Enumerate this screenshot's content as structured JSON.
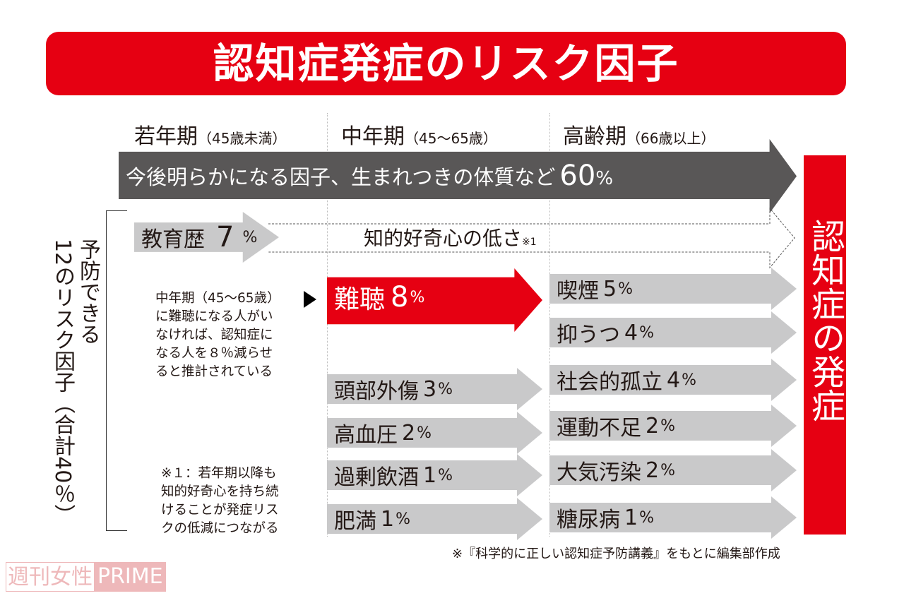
{
  "title": "認知症発症のリスク因子",
  "periods": [
    {
      "name": "若年期",
      "range": "（45歳未満）"
    },
    {
      "name": "中年期",
      "range": "（45〜65歳）"
    },
    {
      "name": "高齢期",
      "range": "（66歳以上）"
    }
  ],
  "main_arrow": {
    "label": "今後明らかになる因子、生まれつきの体質など",
    "value": "60",
    "unit": "%"
  },
  "outcome": "認知症の発症",
  "preventable": {
    "line1": "予防できる",
    "line2": "12のリスク因子（合計40％）"
  },
  "education": {
    "label": "教育歴",
    "value": "7",
    "unit": "%"
  },
  "curiosity": {
    "label": "知的好奇心の低さ",
    "note": "※1"
  },
  "hearing": {
    "label": "難聴",
    "value": "8",
    "unit": "%"
  },
  "midlife_factors": [
    {
      "label": "頭部外傷",
      "value": "3",
      "unit": "%"
    },
    {
      "label": "高血圧",
      "value": "2",
      "unit": "%"
    },
    {
      "label": "過剰飲酒",
      "value": "1",
      "unit": "%"
    },
    {
      "label": "肥満",
      "value": "1",
      "unit": "%"
    }
  ],
  "late_factors": [
    {
      "label": "喫煙",
      "value": "5",
      "unit": "%"
    },
    {
      "label": "抑うつ",
      "value": "4",
      "unit": "%"
    },
    {
      "label": "社会的孤立",
      "value": "4",
      "unit": "%"
    },
    {
      "label": "運動不足",
      "value": "2",
      "unit": "%"
    },
    {
      "label": "大気汚染",
      "value": "2",
      "unit": "%"
    },
    {
      "label": "糖尿病",
      "value": "1",
      "unit": "%"
    }
  ],
  "note_hearing": {
    "head": "中年期（45〜65歳）",
    "body": "に難聴になる人がい\nなければ、認知症に\nなる人を８％減らせ\nると推計されている"
  },
  "note_1": "※１：若年期以降も\n知的好奇心を持ち続\nけることが発症リス\nクの低減につながる",
  "source": "※『科学的に正しい認知症予防講義』をもとに編集部作成",
  "logo": {
    "jp": "週刊女性",
    "en": "PRIME"
  },
  "colors": {
    "red": "#e60012",
    "dark": "#595757",
    "gray": "#c9c9ca"
  }
}
